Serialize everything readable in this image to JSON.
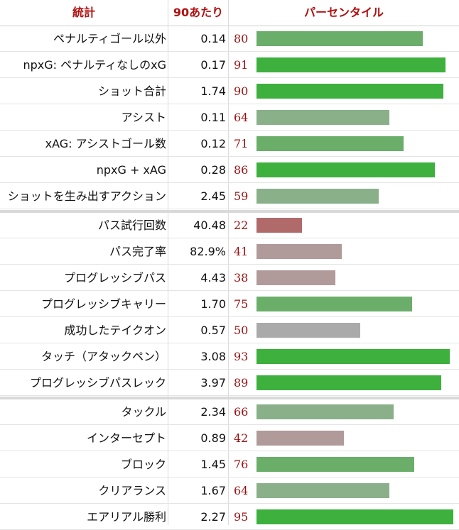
{
  "headers": {
    "stat": "統計",
    "per90": "90あたり",
    "percentile": "パーセンタイル"
  },
  "chart_data": {
    "type": "bar",
    "orientation": "horizontal",
    "xlim": [
      0,
      100
    ],
    "groups": [
      {
        "rows": [
          {
            "stat": "ペナルティゴール以外",
            "per90": "0.14",
            "percentile": 80
          },
          {
            "stat": "npxG: ペナルティなしのxG",
            "per90": "0.17",
            "percentile": 91
          },
          {
            "stat": "ショット合計",
            "per90": "1.74",
            "percentile": 90
          },
          {
            "stat": "アシスト",
            "per90": "0.11",
            "percentile": 64
          },
          {
            "stat": "xAG: アシストゴール数",
            "per90": "0.12",
            "percentile": 71
          },
          {
            "stat": "npxG + xAG",
            "per90": "0.28",
            "percentile": 86
          },
          {
            "stat": "ショットを生み出すアクション",
            "per90": "2.45",
            "percentile": 59
          }
        ]
      },
      {
        "rows": [
          {
            "stat": "パス試行回数",
            "per90": "40.48",
            "percentile": 22
          },
          {
            "stat": "パス完了率",
            "per90": "82.9%",
            "percentile": 41
          },
          {
            "stat": "プログレッシブパス",
            "per90": "4.43",
            "percentile": 38
          },
          {
            "stat": "プログレッシブキャリー",
            "per90": "1.70",
            "percentile": 75
          },
          {
            "stat": "成功したテイクオン",
            "per90": "0.57",
            "percentile": 50
          },
          {
            "stat": "タッチ（アタックペン）",
            "per90": "3.08",
            "percentile": 93
          },
          {
            "stat": "プログレッシブパスレック",
            "per90": "3.97",
            "percentile": 89
          }
        ]
      },
      {
        "rows": [
          {
            "stat": "タックル",
            "per90": "2.34",
            "percentile": 66
          },
          {
            "stat": "インターセプト",
            "per90": "0.89",
            "percentile": 42
          },
          {
            "stat": "ブロック",
            "per90": "1.45",
            "percentile": 76
          },
          {
            "stat": "クリアランス",
            "per90": "1.67",
            "percentile": 64
          },
          {
            "stat": "エアリアル勝利",
            "per90": "2.27",
            "percentile": 95
          }
        ]
      }
    ],
    "colors": {
      "very_low": "#b06a6a",
      "low": "#b09a9a",
      "mid": "#aaaaaa",
      "above": "#8ab08a",
      "good": "#6aae6a",
      "high": "#3db03d"
    }
  }
}
